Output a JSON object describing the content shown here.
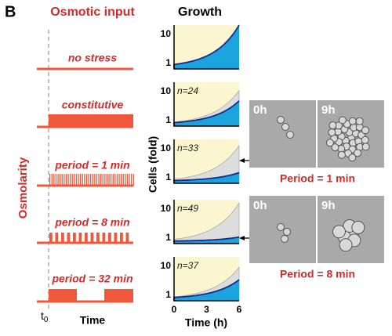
{
  "panel_label": "B",
  "headers": {
    "input": "Osmotic input",
    "growth": "Growth"
  },
  "y_axis_label": "Osmolarity",
  "conditions": [
    {
      "label": "no stress"
    },
    {
      "label": "constitutive",
      "n": "n=24"
    },
    {
      "label": "period = 1 min",
      "n": "n=33"
    },
    {
      "label": "period = 8 min",
      "n": "n=49"
    },
    {
      "label": "period = 32 min",
      "n": "n=37"
    }
  ],
  "time_label": "t",
  "time_subscript": "0",
  "time_axis": "Time",
  "growth_axis": {
    "y_label": "Cells (fold)",
    "y_ticks": [
      "10",
      "1"
    ],
    "x_label": "Time (h)",
    "x_ticks": [
      "0",
      "3",
      "6"
    ]
  },
  "images": [
    {
      "label": "Period = 1 min",
      "before": "0h",
      "after": "9h"
    },
    {
      "label": "Period = 8 min",
      "before": "0h",
      "after": "9h"
    }
  ]
}
